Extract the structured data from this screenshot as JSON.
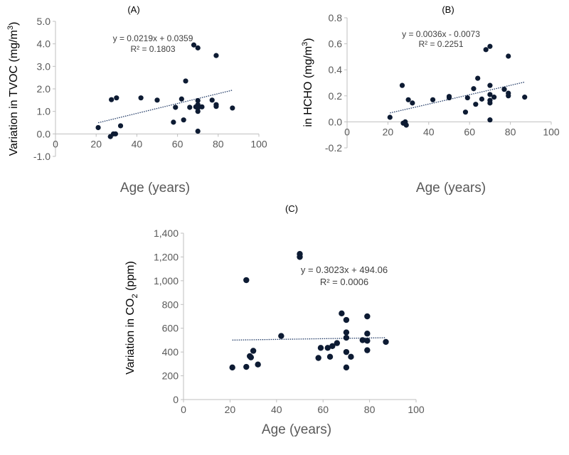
{
  "chart_data": [
    {
      "type": "scatter",
      "panel_label": "(A)",
      "ylabel_text": "Variation in TVOC (mg/m",
      "ylabel_sup": "3",
      "ylabel_end": ")",
      "xlabel": "Age (years)",
      "xlim": [
        0,
        100
      ],
      "ylim": [
        -1.0,
        5.0
      ],
      "x_ticks": [
        0,
        20,
        40,
        60,
        80,
        100
      ],
      "y_ticks": [
        -1.0,
        0.0,
        1.0,
        2.0,
        3.0,
        4.0,
        5.0
      ],
      "y_tick_labels": [
        "-1.0",
        "0.0",
        "1.0",
        "2.0",
        "3.0",
        "4.0",
        "5.0"
      ],
      "points": [
        [
          21,
          0.28
        ],
        [
          27,
          -0.12
        ],
        [
          27.5,
          1.52
        ],
        [
          28.5,
          0.0
        ],
        [
          29.5,
          0.0
        ],
        [
          30,
          1.6
        ],
        [
          32,
          0.36
        ],
        [
          42,
          1.6
        ],
        [
          50,
          1.5
        ],
        [
          58,
          0.52
        ],
        [
          59,
          1.18
        ],
        [
          62,
          1.55
        ],
        [
          63,
          0.62
        ],
        [
          64,
          2.35
        ],
        [
          66,
          1.18
        ],
        [
          68,
          3.95
        ],
        [
          69,
          1.2
        ],
        [
          70,
          3.82
        ],
        [
          70,
          1.48
        ],
        [
          70,
          1.3
        ],
        [
          70,
          1.15
        ],
        [
          70,
          1.0
        ],
        [
          70,
          0.12
        ],
        [
          72,
          1.2
        ],
        [
          77,
          1.5
        ],
        [
          79,
          3.48
        ],
        [
          79,
          1.3
        ],
        [
          79,
          1.22
        ],
        [
          87,
          1.15
        ]
      ],
      "trendline": {
        "equation": "y = 0.0219x + 0.0359",
        "r2": "R² = 0.1803",
        "x_range": [
          21,
          87
        ]
      }
    },
    {
      "type": "scatter",
      "panel_label": "(B)",
      "ylabel_text": "in HCHO (mg/m",
      "ylabel_sup": "3",
      "ylabel_end": ")",
      "xlabel": "Age (years)",
      "xlim": [
        0,
        100
      ],
      "ylim": [
        -0.2,
        0.8
      ],
      "x_ticks": [
        0,
        20,
        40,
        60,
        80,
        100
      ],
      "y_ticks": [
        -0.2,
        0.0,
        0.2,
        0.4,
        0.6,
        0.8
      ],
      "y_tick_labels": [
        "-0.2",
        "0.0",
        "0.2",
        "0.4",
        "0.6",
        "0.8"
      ],
      "points": [
        [
          21,
          0.035
        ],
        [
          27,
          0.28
        ],
        [
          27.5,
          -0.01
        ],
        [
          28.5,
          0.0
        ],
        [
          29,
          -0.025
        ],
        [
          30,
          0.17
        ],
        [
          32,
          0.145
        ],
        [
          42,
          0.17
        ],
        [
          50,
          0.195
        ],
        [
          50,
          0.185
        ],
        [
          58,
          0.075
        ],
        [
          59,
          0.185
        ],
        [
          62,
          0.255
        ],
        [
          63,
          0.135
        ],
        [
          64,
          0.335
        ],
        [
          66,
          0.175
        ],
        [
          68,
          0.555
        ],
        [
          70,
          0.58
        ],
        [
          70,
          0.28
        ],
        [
          70,
          0.21
        ],
        [
          70,
          0.165
        ],
        [
          70,
          0.145
        ],
        [
          70,
          0.015
        ],
        [
          72,
          0.19
        ],
        [
          77,
          0.25
        ],
        [
          79,
          0.505
        ],
        [
          79,
          0.22
        ],
        [
          79,
          0.2
        ],
        [
          87,
          0.19
        ]
      ],
      "trendline": {
        "equation": "y = 0.0036x - 0.0073",
        "r2": "R² = 0.2251",
        "x_range": [
          21,
          87
        ]
      }
    },
    {
      "type": "scatter",
      "panel_label": "(C)",
      "ylabel_text": "Variation in CO",
      "ylabel_sub": "2",
      "ylabel_end": " (ppm)",
      "xlabel": "Age (years)",
      "xlim": [
        0,
        100
      ],
      "ylim": [
        0,
        1400
      ],
      "x_ticks": [
        0,
        20,
        40,
        60,
        80,
        100
      ],
      "y_ticks": [
        0,
        200,
        400,
        600,
        800,
        1000,
        1200,
        1400
      ],
      "y_tick_labels": [
        "0",
        "200",
        "400",
        "600",
        "800",
        "1,000",
        "1,200",
        "1,400"
      ],
      "points": [
        [
          21,
          270
        ],
        [
          27,
          1005
        ],
        [
          27,
          275
        ],
        [
          28.5,
          365
        ],
        [
          29,
          355
        ],
        [
          30,
          410
        ],
        [
          32,
          295
        ],
        [
          42,
          535
        ],
        [
          50,
          1225
        ],
        [
          50,
          1200
        ],
        [
          58,
          350
        ],
        [
          59,
          435
        ],
        [
          62,
          435
        ],
        [
          63,
          360
        ],
        [
          64,
          450
        ],
        [
          66,
          475
        ],
        [
          68,
          725
        ],
        [
          70,
          670
        ],
        [
          70,
          565
        ],
        [
          70,
          520
        ],
        [
          70,
          400
        ],
        [
          70,
          270
        ],
        [
          72,
          360
        ],
        [
          77,
          500
        ],
        [
          79,
          700
        ],
        [
          79,
          555
        ],
        [
          79,
          495
        ],
        [
          79,
          415
        ],
        [
          87,
          485
        ]
      ],
      "trendline": {
        "equation": "y = 0.3023x + 494.06",
        "r2": "R² = 0.0006",
        "x_range": [
          21,
          87
        ]
      }
    }
  ],
  "colors": {
    "point": "#0d1b33",
    "trend": "#1f3864",
    "axis": "#bfbfbf",
    "text": "#595959"
  }
}
